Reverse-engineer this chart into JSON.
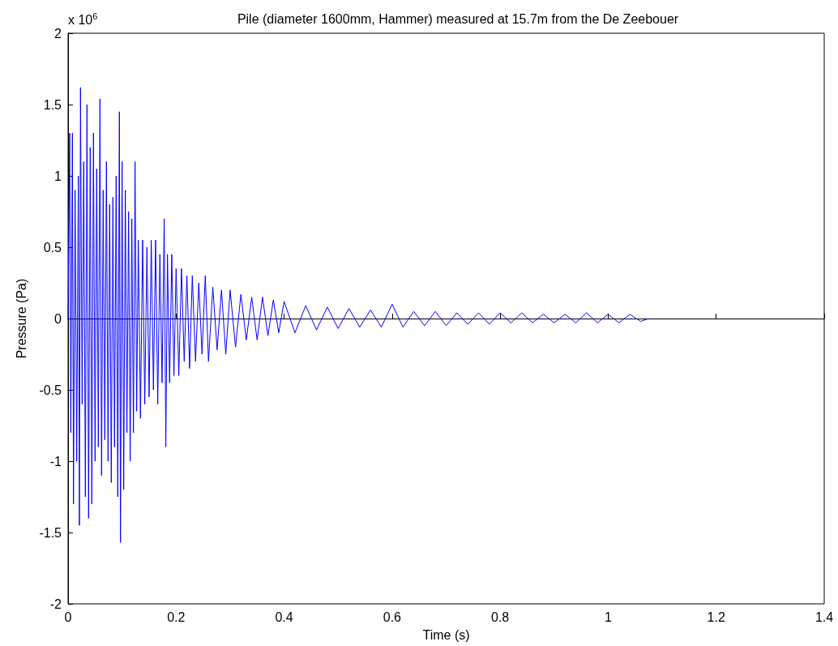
{
  "chart_data": {
    "type": "line",
    "title": "Pile (diameter 1600mm, Hammer) measured at 15.7m from the De Zeebouer",
    "xlabel": "Time (s)",
    "ylabel": "Pressure (Pa)",
    "annotations": [
      "x 10$^{6}$"
    ],
    "xlim": [
      0,
      1.4
    ],
    "xticks": [
      0,
      0.2,
      0.4,
      0.6,
      0.8,
      1,
      1.2,
      1.4
    ],
    "ylim": [
      -2,
      2
    ],
    "yticks": [
      -2,
      -1.5,
      -1,
      -0.5,
      0,
      0.5,
      1,
      1.5,
      2
    ],
    "marker": "none",
    "series": [
      {
        "color": "#0000ff",
        "x": [
          0,
          0.003,
          0.005,
          0.008,
          0.01,
          0.013,
          0.016,
          0.019,
          0.021,
          0.023,
          0.026,
          0.029,
          0.032,
          0.035,
          0.038,
          0.041,
          0.044,
          0.047,
          0.05,
          0.053,
          0.056,
          0.059,
          0.062,
          0.065,
          0.068,
          0.071,
          0.074,
          0.077,
          0.08,
          0.083,
          0.086,
          0.089,
          0.092,
          0.095,
          0.097,
          0.1,
          0.103,
          0.106,
          0.109,
          0.112,
          0.115,
          0.118,
          0.121,
          0.124,
          0.127,
          0.13,
          0.134,
          0.138,
          0.142,
          0.146,
          0.15,
          0.154,
          0.158,
          0.162,
          0.166,
          0.17,
          0.174,
          0.178,
          0.181,
          0.184,
          0.188,
          0.192,
          0.196,
          0.2,
          0.205,
          0.21,
          0.215,
          0.22,
          0.225,
          0.23,
          0.236,
          0.242,
          0.248,
          0.254,
          0.26,
          0.268,
          0.276,
          0.284,
          0.292,
          0.3,
          0.31,
          0.32,
          0.33,
          0.34,
          0.35,
          0.36,
          0.37,
          0.38,
          0.39,
          0.4,
          0.42,
          0.44,
          0.46,
          0.48,
          0.5,
          0.52,
          0.54,
          0.56,
          0.58,
          0.6,
          0.62,
          0.64,
          0.66,
          0.68,
          0.7,
          0.72,
          0.74,
          0.76,
          0.78,
          0.8,
          0.82,
          0.84,
          0.86,
          0.88,
          0.9,
          0.92,
          0.94,
          0.96,
          0.98,
          1,
          1.02,
          1.04,
          1.06,
          1.075
        ],
        "values": [
          0,
          1.3,
          -0.8,
          1.3,
          -1.3,
          0.9,
          -1.0,
          1.0,
          -1.45,
          1.62,
          -0.6,
          1.1,
          -1.25,
          1.5,
          -1.4,
          1.2,
          -1.3,
          1.3,
          -1.0,
          1.05,
          -0.9,
          1.54,
          -1.1,
          0.9,
          -0.85,
          1.1,
          -1.0,
          0.8,
          -1.15,
          0.85,
          -0.9,
          1.0,
          -1.25,
          1.45,
          -1.57,
          1.1,
          -1.2,
          0.9,
          -0.8,
          0.75,
          -1.0,
          0.7,
          -0.8,
          1.1,
          -0.65,
          0.55,
          -0.7,
          0.55,
          -0.6,
          0.5,
          -0.55,
          0.55,
          -0.5,
          0.55,
          -0.6,
          0.45,
          -0.45,
          0.7,
          -0.9,
          0.45,
          -0.45,
          0.45,
          -0.4,
          0.35,
          -0.4,
          0.35,
          -0.3,
          0.3,
          -0.35,
          0.3,
          -0.3,
          0.25,
          -0.25,
          0.3,
          -0.3,
          0.22,
          -0.22,
          0.2,
          -0.25,
          0.2,
          -0.2,
          0.17,
          -0.15,
          0.15,
          -0.15,
          0.15,
          -0.12,
          0.13,
          -0.1,
          0.12,
          -0.1,
          0.09,
          -0.08,
          0.08,
          -0.07,
          0.07,
          -0.06,
          0.06,
          -0.06,
          0.1,
          -0.06,
          0.05,
          -0.05,
          0.05,
          -0.05,
          0.04,
          -0.04,
          0.04,
          -0.04,
          0.04,
          -0.03,
          0.04,
          -0.03,
          0.03,
          -0.03,
          0.03,
          -0.03,
          0.04,
          -0.03,
          0.03,
          -0.03,
          0.03,
          -0.02,
          0
        ]
      }
    ]
  }
}
